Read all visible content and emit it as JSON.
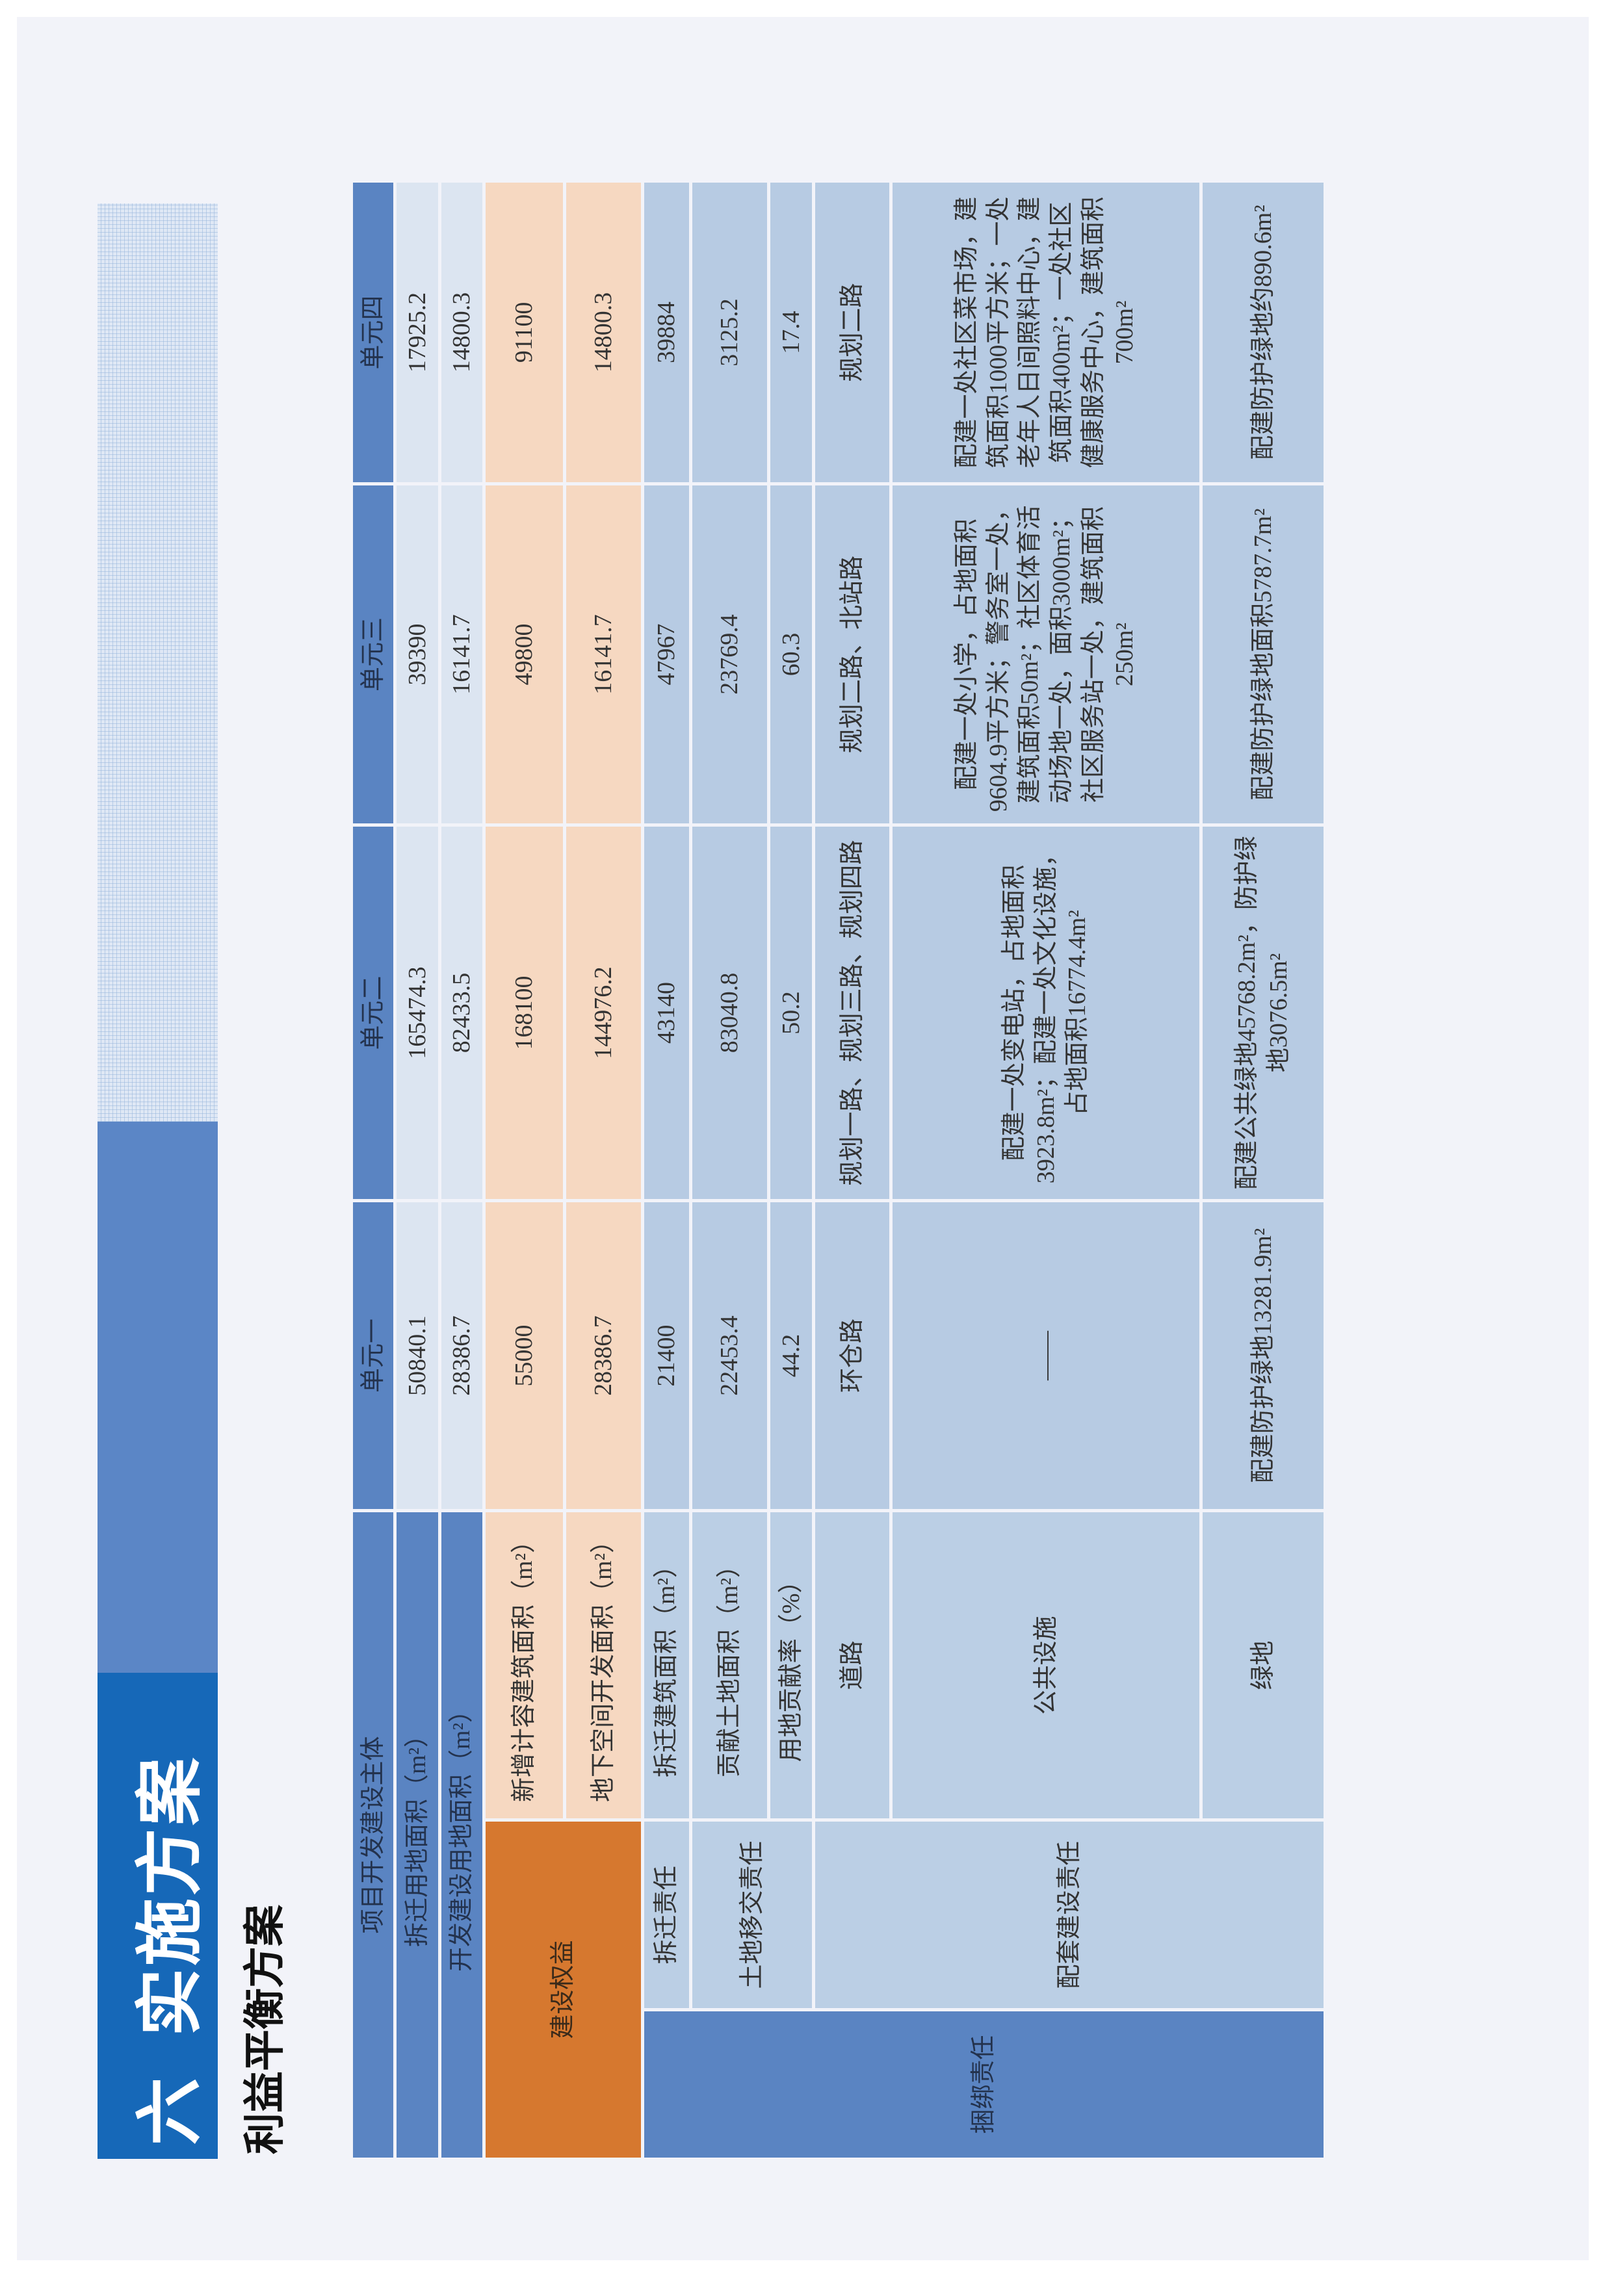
{
  "header": {
    "section_number": "六",
    "title": "实施方案",
    "subtitle": "利益平衡方案"
  },
  "table": {
    "corner": "项目开发建设主体",
    "units": [
      "单元一",
      "单元二",
      "单元三",
      "单元四"
    ],
    "groups": {
      "rights": "建设权益",
      "bound": "捆绑责任",
      "demolition": "拆迁责任",
      "land_transfer": "土地移交责任",
      "supporting": "配套建设责任"
    },
    "rows": [
      {
        "label": "拆迁用地面积（m²）",
        "values": [
          "50840.1",
          "165474.3",
          "39390",
          "17925.2"
        ]
      },
      {
        "label": "开发建设用地面积（m²）",
        "values": [
          "28386.7",
          "82433.5",
          "16141.7",
          "14800.3"
        ]
      },
      {
        "label": "新增计容建筑面积（m²）",
        "values": [
          "55000",
          "168100",
          "49800",
          "91100"
        ]
      },
      {
        "label": "地下空间开发面积（m²）",
        "values": [
          "28386.7",
          "144976.2",
          "16141.7",
          "14800.3"
        ]
      },
      {
        "label": "拆迁建筑面积（m²）",
        "values": [
          "21400",
          "43140",
          "47967",
          "39884"
        ]
      },
      {
        "label": "贡献土地面积（m²）",
        "values": [
          "22453.4",
          "83040.8",
          "23769.4",
          "3125.2"
        ]
      },
      {
        "label": "用地贡献率（%）",
        "values": [
          "44.2",
          "50.2",
          "60.3",
          "17.4"
        ]
      },
      {
        "label": "道路",
        "values": [
          "环仓路",
          "规划一路、规划三路、规划四路",
          "规划二路、北站路",
          "规划二路"
        ]
      },
      {
        "label": "公共设施",
        "values": [
          "——",
          "配建一处变电站，占地面积3923.8m²；配建一处文化设施，占地面积16774.4m²",
          "配建一处小学，占地面积9604.9平方米；警务室一处，建筑面积50m²；社区体育活动场地一处，面积3000m²；社区服务站一处，建筑面积250m²",
          "配建一处社区菜市场，建筑面积1000平方米；一处老年人日间照料中心，建筑面积400m²；一处社区健康服务中心，建筑面积700m²"
        ]
      },
      {
        "label": "绿地",
        "values": [
          "配建防护绿地13281.9m²",
          "配建公共绿地45768.2m²，防护绿地3076.5m²",
          "配建防护绿地面积5787.7m²",
          "配建防护绿地约890.6m²"
        ]
      }
    ]
  },
  "colors": {
    "title_bar": "#1668b8",
    "header_blue": "#5a84c2",
    "orange": "#d6782f",
    "peach": "#f6d8c1",
    "light_blue": "#b7cbe3"
  }
}
